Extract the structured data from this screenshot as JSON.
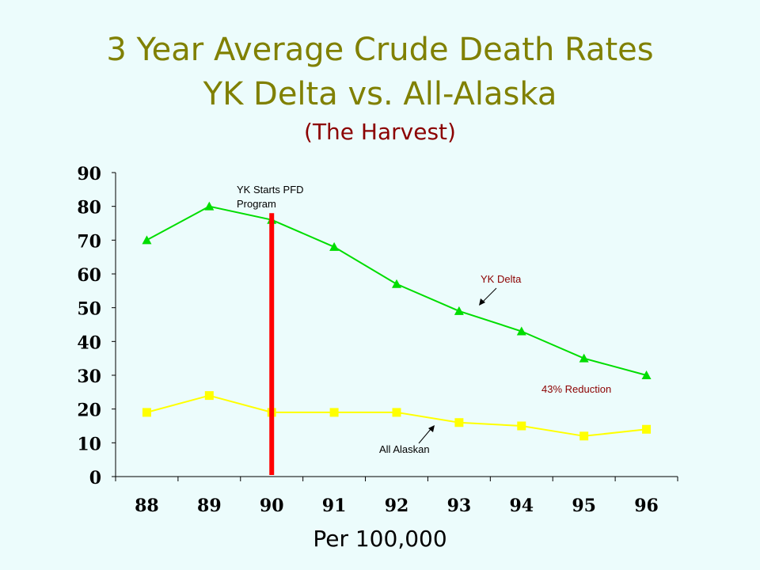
{
  "title_line1": "3 Year Average Crude Death Rates",
  "title_line2": "YK Delta vs. All-Alaska",
  "subtitle": "(The Harvest)",
  "footer": "Per 100,000",
  "colors": {
    "title": "#808000",
    "subtitle": "#8b0000",
    "yk_delta": "#00dd00",
    "all_alaskan": "#ffff00",
    "marker_line": "#ff0000",
    "annotation": "#8b0000"
  },
  "chart_data": {
    "type": "line",
    "categories": [
      "88",
      "89",
      "90",
      "91",
      "92",
      "93",
      "94",
      "95",
      "96"
    ],
    "ylim": [
      0,
      90
    ],
    "yticks": [
      0,
      10,
      20,
      30,
      40,
      50,
      60,
      70,
      80,
      90
    ],
    "series": [
      {
        "name": "YK Delta",
        "marker": "triangle",
        "values": [
          70,
          80,
          76,
          68,
          57,
          49,
          43,
          35,
          30
        ]
      },
      {
        "name": "All Alaskan",
        "marker": "square",
        "values": [
          19,
          24,
          19,
          19,
          19,
          16,
          15,
          12,
          14
        ]
      }
    ],
    "vertical_marker": {
      "category": "90",
      "offset": 0.0
    },
    "annotations": {
      "pfd": "YK Starts PFD Program",
      "pfd_line1": "YK Starts PFD",
      "pfd_line2": "Program",
      "reduction": "43% Reduction"
    },
    "grid": false
  }
}
